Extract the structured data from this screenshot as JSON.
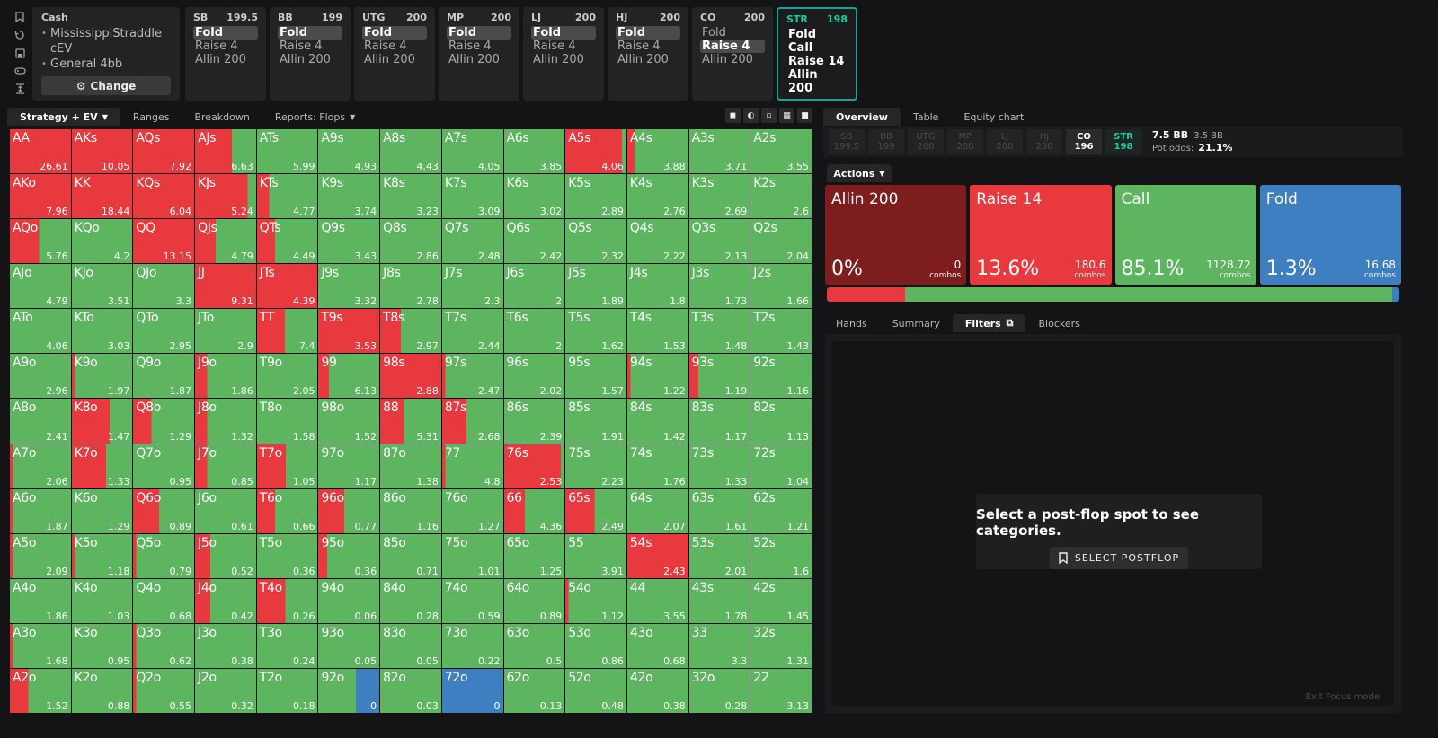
{
  "game": {
    "title": "Cash",
    "items": [
      "MississippiStraddle cEV",
      "General 4bb"
    ],
    "change_label": "Change"
  },
  "tools": [
    "bookmark-icon",
    "reset-icon",
    "save-icon",
    "gamepad-icon",
    "fit-icon"
  ],
  "seats": [
    {
      "pos": "SB",
      "stack": "199.5",
      "actions": [
        "Fold",
        "Raise 4",
        "Allin 200"
      ],
      "selected": 0
    },
    {
      "pos": "BB",
      "stack": "199",
      "actions": [
        "Fold",
        "Raise 4",
        "Allin 200"
      ],
      "selected": 0
    },
    {
      "pos": "UTG",
      "stack": "200",
      "actions": [
        "Fold",
        "Raise 4",
        "Allin 200"
      ],
      "selected": 0
    },
    {
      "pos": "MP",
      "stack": "200",
      "actions": [
        "Fold",
        "Raise 4",
        "Allin 200"
      ],
      "selected": 0
    },
    {
      "pos": "LJ",
      "stack": "200",
      "actions": [
        "Fold",
        "Raise 4",
        "Allin 200"
      ],
      "selected": 0
    },
    {
      "pos": "HJ",
      "stack": "200",
      "actions": [
        "Fold",
        "Raise 4",
        "Allin 200"
      ],
      "selected": 0
    },
    {
      "pos": "CO",
      "stack": "200",
      "actions": [
        "Fold",
        "Raise 4",
        "Allin 200"
      ],
      "selected": 1
    },
    {
      "pos": "STR",
      "stack": "198",
      "actions": [
        "Fold",
        "Call",
        "Raise 14",
        "Allin 200"
      ],
      "selected": -1,
      "highlight": true
    }
  ],
  "left_tabs": [
    {
      "label": "Strategy + EV",
      "active": true,
      "caret": true
    },
    {
      "label": "Ranges"
    },
    {
      "label": "Breakdown"
    },
    {
      "label": "Reports: Flops",
      "caret": true
    }
  ],
  "right_tabs": [
    {
      "label": "Overview",
      "active": true
    },
    {
      "label": "Table"
    },
    {
      "label": "Equity chart"
    }
  ],
  "positions": [
    {
      "pos": "SB",
      "stack": "199.5"
    },
    {
      "pos": "BB",
      "stack": "199"
    },
    {
      "pos": "UTG",
      "stack": "200"
    },
    {
      "pos": "MP",
      "stack": "200"
    },
    {
      "pos": "LJ",
      "stack": "200"
    },
    {
      "pos": "HJ",
      "stack": "200"
    },
    {
      "pos": "CO",
      "stack": "196",
      "state": "on"
    },
    {
      "pos": "STR",
      "stack": "198",
      "state": "str"
    }
  ],
  "pot": {
    "bb": "7.5 BB",
    "bb2": "3.5 BB",
    "odds_label": "Pot odds:",
    "odds": "21.1%"
  },
  "actions_tab": "Actions",
  "actions": [
    {
      "name": "Allin 200",
      "pct": "0%",
      "combos": "0",
      "combos_label": "combos",
      "color": "#7d1d1d"
    },
    {
      "name": "Raise 14",
      "pct": "13.6%",
      "combos": "180.6",
      "combos_label": "combos",
      "color": "#e8393f"
    },
    {
      "name": "Call",
      "pct": "85.1%",
      "combos": "1128.72",
      "combos_label": "combos",
      "color": "#5db560"
    },
    {
      "name": "Fold",
      "pct": "1.3%",
      "combos": "16.68",
      "combos_label": "combos",
      "color": "#3d7fc1"
    }
  ],
  "freq": [
    13.6,
    85.1,
    1.3
  ],
  "bottom_tabs": [
    {
      "label": "Hands"
    },
    {
      "label": "Summary"
    },
    {
      "label": "Filters",
      "active": true,
      "icon": true
    },
    {
      "label": "Blockers"
    }
  ],
  "filters_msg": {
    "title": "Select a post-flop spot to see categories.",
    "button": "SELECT POSTFLOP"
  },
  "exit_label": "Exit Focus mode",
  "colors": {
    "raise": "#e8393f",
    "call": "#5db560",
    "fold": "#3d7fc1",
    "allin": "#7d1d1d"
  },
  "grid": [
    [
      [
        "AA",
        "26.61",
        100,
        0
      ],
      [
        "AKs",
        "10.05",
        100,
        0
      ],
      [
        "AQs",
        "7.92",
        100,
        0
      ],
      [
        "AJs",
        "6.63",
        60,
        0
      ],
      [
        "ATs",
        "5.99",
        0,
        0
      ],
      [
        "A9s",
        "4.93",
        0,
        0
      ],
      [
        "A8s",
        "4.43",
        0,
        0
      ],
      [
        "A7s",
        "4.05",
        0,
        0
      ],
      [
        "A6s",
        "3.85",
        0,
        0
      ],
      [
        "A5s",
        "4.06",
        93,
        0
      ],
      [
        "A4s",
        "3.88",
        12,
        0
      ],
      [
        "A3s",
        "3.71",
        0,
        0
      ],
      [
        "A2s",
        "3.55",
        0,
        0
      ]
    ],
    [
      [
        "AKo",
        "7.96",
        100,
        0
      ],
      [
        "KK",
        "18.44",
        100,
        0
      ],
      [
        "KQs",
        "6.04",
        100,
        0
      ],
      [
        "KJs",
        "5.24",
        86,
        0
      ],
      [
        "KTs",
        "4.77",
        20,
        0
      ],
      [
        "K9s",
        "3.74",
        0,
        0
      ],
      [
        "K8s",
        "3.23",
        0,
        0
      ],
      [
        "K7s",
        "3.09",
        0,
        0
      ],
      [
        "K6s",
        "3.02",
        0,
        0
      ],
      [
        "K5s",
        "2.89",
        0,
        0
      ],
      [
        "K4s",
        "2.76",
        0,
        0
      ],
      [
        "K3s",
        "2.69",
        0,
        0
      ],
      [
        "K2s",
        "2.6",
        0,
        0
      ]
    ],
    [
      [
        "AQo",
        "5.76",
        48,
        0
      ],
      [
        "KQo",
        "4.2",
        0,
        0
      ],
      [
        "QQ",
        "13.15",
        100,
        0
      ],
      [
        "QJs",
        "4.79",
        34,
        0
      ],
      [
        "QTs",
        "4.49",
        30,
        0
      ],
      [
        "Q9s",
        "3.43",
        0,
        0
      ],
      [
        "Q8s",
        "2.86",
        0,
        0
      ],
      [
        "Q7s",
        "2.48",
        0,
        0
      ],
      [
        "Q6s",
        "2.42",
        0,
        0
      ],
      [
        "Q5s",
        "2.32",
        0,
        0
      ],
      [
        "Q4s",
        "2.22",
        0,
        0
      ],
      [
        "Q3s",
        "2.13",
        0,
        0
      ],
      [
        "Q2s",
        "2.04",
        0,
        0
      ]
    ],
    [
      [
        "AJo",
        "4.79",
        0,
        0
      ],
      [
        "KJo",
        "3.51",
        0,
        0
      ],
      [
        "QJo",
        "3.3",
        0,
        0
      ],
      [
        "JJ",
        "9.31",
        100,
        0
      ],
      [
        "JTs",
        "4.39",
        100,
        0
      ],
      [
        "J9s",
        "3.32",
        0,
        0
      ],
      [
        "J8s",
        "2.78",
        0,
        0
      ],
      [
        "J7s",
        "2.3",
        0,
        0
      ],
      [
        "J6s",
        "2",
        0,
        0
      ],
      [
        "J5s",
        "1.89",
        0,
        0
      ],
      [
        "J4s",
        "1.8",
        0,
        0
      ],
      [
        "J3s",
        "1.73",
        0,
        0
      ],
      [
        "J2s",
        "1.66",
        0,
        0
      ]
    ],
    [
      [
        "ATo",
        "4.06",
        0,
        0
      ],
      [
        "KTo",
        "3.03",
        0,
        0
      ],
      [
        "QTo",
        "2.95",
        0,
        0
      ],
      [
        "JTo",
        "2.9",
        0,
        0
      ],
      [
        "TT",
        "7.4",
        46,
        0
      ],
      [
        "T9s",
        "3.53",
        100,
        0
      ],
      [
        "T8s",
        "2.97",
        34,
        0
      ],
      [
        "T7s",
        "2.44",
        0,
        0
      ],
      [
        "T6s",
        "2",
        0,
        0
      ],
      [
        "T5s",
        "1.62",
        0,
        0
      ],
      [
        "T4s",
        "1.53",
        0,
        0
      ],
      [
        "T3s",
        "1.48",
        0,
        0
      ],
      [
        "T2s",
        "1.43",
        0,
        0
      ]
    ],
    [
      [
        "A9o",
        "2.96",
        0,
        0
      ],
      [
        "K9o",
        "1.97",
        5,
        0
      ],
      [
        "Q9o",
        "1.87",
        0,
        0
      ],
      [
        "J9o",
        "1.86",
        20,
        0
      ],
      [
        "T9o",
        "2.05",
        0,
        0
      ],
      [
        "99",
        "6.13",
        18,
        0
      ],
      [
        "98s",
        "2.88",
        100,
        0
      ],
      [
        "97s",
        "2.47",
        5,
        0
      ],
      [
        "96s",
        "2.02",
        0,
        0
      ],
      [
        "95s",
        "1.57",
        0,
        0
      ],
      [
        "94s",
        "1.22",
        5,
        0
      ],
      [
        "93s",
        "1.19",
        15,
        0
      ],
      [
        "92s",
        "1.16",
        0,
        0
      ]
    ],
    [
      [
        "A8o",
        "2.41",
        0,
        0
      ],
      [
        "K8o",
        "1.47",
        63,
        0
      ],
      [
        "Q8o",
        "1.29",
        30,
        0
      ],
      [
        "J8o",
        "1.32",
        20,
        0
      ],
      [
        "T8o",
        "1.58",
        0,
        0
      ],
      [
        "98o",
        "1.52",
        0,
        0
      ],
      [
        "88",
        "5.31",
        39,
        0
      ],
      [
        "87s",
        "2.68",
        40,
        0
      ],
      [
        "86s",
        "2.39",
        0,
        0
      ],
      [
        "85s",
        "1.91",
        0,
        0
      ],
      [
        "84s",
        "1.42",
        0,
        0
      ],
      [
        "83s",
        "1.17",
        0,
        0
      ],
      [
        "82s",
        "1.13",
        0,
        0
      ]
    ],
    [
      [
        "A7o",
        "2.06",
        5,
        0
      ],
      [
        "K7o",
        "1.33",
        57,
        0
      ],
      [
        "Q7o",
        "0.95",
        0,
        0
      ],
      [
        "J7o",
        "0.85",
        20,
        0
      ],
      [
        "T7o",
        "1.05",
        48,
        0
      ],
      [
        "97o",
        "1.17",
        0,
        0
      ],
      [
        "87o",
        "1.38",
        0,
        0
      ],
      [
        "77",
        "4.8",
        5,
        0
      ],
      [
        "76s",
        "2.53",
        94,
        0
      ],
      [
        "75s",
        "2.23",
        0,
        0
      ],
      [
        "74s",
        "1.76",
        0,
        0
      ],
      [
        "73s",
        "1.33",
        0,
        0
      ],
      [
        "72s",
        "1.04",
        0,
        0
      ]
    ],
    [
      [
        "A6o",
        "1.87",
        5,
        0
      ],
      [
        "K6o",
        "1.29",
        0,
        0
      ],
      [
        "Q6o",
        "0.89",
        43,
        0
      ],
      [
        "J6o",
        "0.61",
        0,
        0
      ],
      [
        "T6o",
        "0.66",
        30,
        0
      ],
      [
        "96o",
        "0.77",
        43,
        0
      ],
      [
        "86o",
        "1.16",
        0,
        0
      ],
      [
        "76o",
        "1.27",
        0,
        0
      ],
      [
        "66",
        "4.36",
        34,
        0
      ],
      [
        "65s",
        "2.49",
        48,
        0
      ],
      [
        "64s",
        "2.07",
        0,
        0
      ],
      [
        "63s",
        "1.61",
        0,
        0
      ],
      [
        "62s",
        "1.21",
        0,
        0
      ]
    ],
    [
      [
        "A5o",
        "2.09",
        5,
        0
      ],
      [
        "K5o",
        "1.18",
        5,
        0
      ],
      [
        "Q5o",
        "0.79",
        5,
        0
      ],
      [
        "J5o",
        "0.52",
        25,
        0
      ],
      [
        "T5o",
        "0.36",
        0,
        0
      ],
      [
        "95o",
        "0.36",
        15,
        0
      ],
      [
        "85o",
        "0.71",
        0,
        0
      ],
      [
        "75o",
        "1.01",
        0,
        0
      ],
      [
        "65o",
        "1.25",
        0,
        0
      ],
      [
        "55",
        "3.91",
        0,
        0
      ],
      [
        "54s",
        "2.43",
        100,
        0
      ],
      [
        "53s",
        "2.01",
        0,
        0
      ],
      [
        "52s",
        "1.6",
        0,
        0
      ]
    ],
    [
      [
        "A4o",
        "1.86",
        0,
        0
      ],
      [
        "K4o",
        "1.03",
        0,
        0
      ],
      [
        "Q4o",
        "0.68",
        0,
        0
      ],
      [
        "J4o",
        "0.42",
        25,
        0
      ],
      [
        "T4o",
        "0.26",
        47,
        0
      ],
      [
        "94o",
        "0.06",
        0,
        0
      ],
      [
        "84o",
        "0.28",
        0,
        0
      ],
      [
        "74o",
        "0.59",
        0,
        0
      ],
      [
        "64o",
        "0.89",
        0,
        0
      ],
      [
        "54o",
        "1.12",
        5,
        0
      ],
      [
        "44",
        "3.55",
        0,
        0
      ],
      [
        "43s",
        "1.78",
        0,
        0
      ],
      [
        "42s",
        "1.45",
        0,
        0
      ]
    ],
    [
      [
        "A3o",
        "1.68",
        5,
        0
      ],
      [
        "K3o",
        "0.95",
        0,
        0
      ],
      [
        "Q3o",
        "0.62",
        5,
        0
      ],
      [
        "J3o",
        "0.38",
        0,
        0
      ],
      [
        "T3o",
        "0.24",
        0,
        0
      ],
      [
        "93o",
        "0.05",
        0,
        0
      ],
      [
        "83o",
        "0.05",
        0,
        0
      ],
      [
        "73o",
        "0.22",
        0,
        0
      ],
      [
        "63o",
        "0.5",
        0,
        0
      ],
      [
        "53o",
        "0.86",
        0,
        0
      ],
      [
        "43o",
        "0.68",
        0,
        0
      ],
      [
        "33",
        "3.3",
        0,
        0
      ],
      [
        "32s",
        "1.31",
        0,
        0
      ]
    ],
    [
      [
        "A2o",
        "1.52",
        30,
        0
      ],
      [
        "K2o",
        "0.88",
        0,
        0
      ],
      [
        "Q2o",
        "0.55",
        5,
        0
      ],
      [
        "J2o",
        "0.32",
        0,
        0
      ],
      [
        "T2o",
        "0.18",
        0,
        0
      ],
      [
        "92o",
        "0",
        0,
        38
      ],
      [
        "82o",
        "0.03",
        0,
        0
      ],
      [
        "72o",
        "0",
        0,
        100
      ],
      [
        "62o",
        "0.13",
        0,
        0
      ],
      [
        "52o",
        "0.48",
        0,
        0
      ],
      [
        "42o",
        "0.38",
        0,
        0
      ],
      [
        "32o",
        "0.28",
        0,
        0
      ],
      [
        "22",
        "3.13",
        0,
        0
      ]
    ]
  ]
}
